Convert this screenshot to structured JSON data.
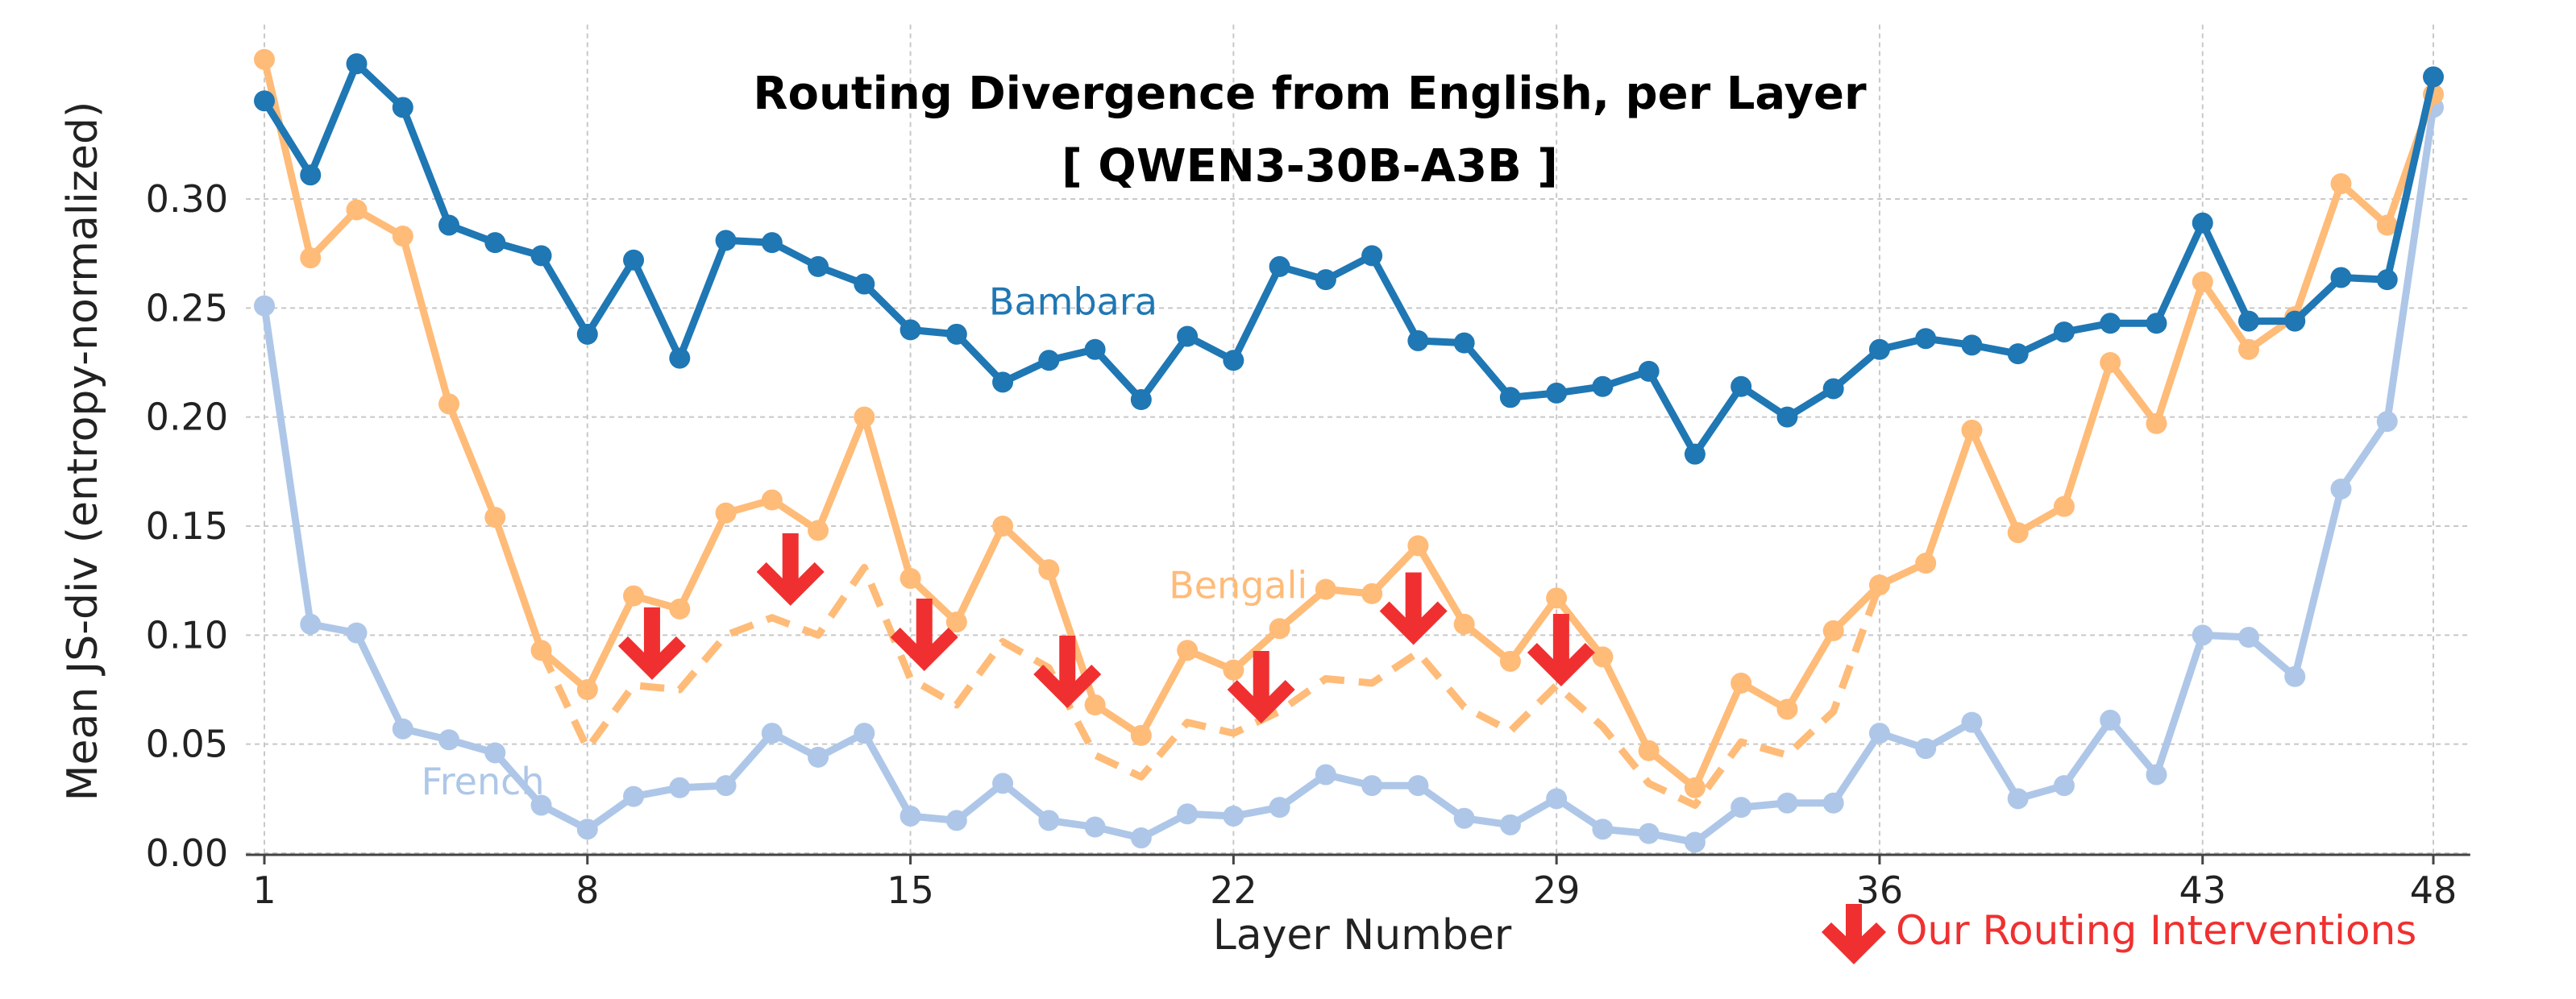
{
  "chart_data": {
    "type": "line",
    "title": "Routing Divergence from English, per Layer",
    "subtitle": "[ QWEN3-30B-A3B ]",
    "xlabel": "Layer Number",
    "ylabel": "Mean JS-div (entropy-normalized)",
    "xlim": [
      0.6,
      48.8
    ],
    "ylim": [
      0,
      0.38
    ],
    "xticks": [
      1,
      8,
      15,
      22,
      29,
      36,
      43,
      48
    ],
    "yticks": [
      0.0,
      0.05,
      0.1,
      0.15,
      0.2,
      0.25,
      0.3
    ],
    "ytick_labels": [
      "0.00",
      "0.05",
      "0.10",
      "0.15",
      "0.20",
      "0.25",
      "0.30"
    ],
    "grid": true,
    "x": [
      1,
      2,
      3,
      4,
      5,
      6,
      7,
      8,
      9,
      10,
      11,
      12,
      13,
      14,
      15,
      16,
      17,
      18,
      19,
      20,
      21,
      22,
      23,
      24,
      25,
      26,
      27,
      28,
      29,
      30,
      31,
      32,
      33,
      34,
      35,
      36,
      37,
      38,
      39,
      40,
      41,
      42,
      43,
      44,
      45,
      46,
      47,
      48
    ],
    "series": [
      {
        "name": "Bambara",
        "color": "#1f77b4",
        "style": "solid",
        "values": [
          0.345,
          0.311,
          0.362,
          0.342,
          0.288,
          0.28,
          0.274,
          0.238,
          0.272,
          0.227,
          0.281,
          0.28,
          0.269,
          0.261,
          0.24,
          0.238,
          0.216,
          0.226,
          0.231,
          0.208,
          0.237,
          0.226,
          0.269,
          0.263,
          0.274,
          0.235,
          0.234,
          0.209,
          0.211,
          0.214,
          0.221,
          0.183,
          0.214,
          0.2,
          0.213,
          0.231,
          0.236,
          0.233,
          0.229,
          0.239,
          0.243,
          0.243,
          0.289,
          0.244,
          0.244,
          0.264,
          0.263,
          0.356
        ]
      },
      {
        "name": "Bengali",
        "color": "#ffbb78",
        "style": "solid",
        "values": [
          0.364,
          0.273,
          0.295,
          0.283,
          0.206,
          0.154,
          0.093,
          0.075,
          0.118,
          0.112,
          0.156,
          0.162,
          0.148,
          0.2,
          0.126,
          0.106,
          0.15,
          0.13,
          0.068,
          0.054,
          0.093,
          0.084,
          0.103,
          0.121,
          0.119,
          0.141,
          0.105,
          0.088,
          0.117,
          0.09,
          0.047,
          0.03,
          0.078,
          0.066,
          0.102,
          0.123,
          0.133,
          0.194,
          0.147,
          0.159,
          0.225,
          0.197,
          0.262,
          0.231,
          0.246,
          0.307,
          0.288,
          0.348
        ]
      },
      {
        "name": "Bengali (with routing interventions)",
        "color": "#ffbb78",
        "style": "dashed",
        "x": [
          7,
          8,
          9,
          10,
          11,
          12,
          13,
          14,
          15,
          16,
          17,
          18,
          19,
          20,
          21,
          22,
          23,
          24,
          25,
          26,
          27,
          28,
          29,
          30,
          31,
          32,
          33,
          34,
          35,
          36
        ],
        "values": [
          0.093,
          0.048,
          0.077,
          0.075,
          0.1,
          0.108,
          0.1,
          0.131,
          0.08,
          0.068,
          0.097,
          0.085,
          0.045,
          0.035,
          0.06,
          0.055,
          0.065,
          0.08,
          0.078,
          0.092,
          0.067,
          0.056,
          0.077,
          0.058,
          0.032,
          0.022,
          0.051,
          0.045,
          0.065,
          0.123
        ]
      },
      {
        "name": "French",
        "color": "#aec7e8",
        "style": "solid",
        "values": [
          0.251,
          0.105,
          0.101,
          0.057,
          0.052,
          0.046,
          0.022,
          0.011,
          0.026,
          0.03,
          0.031,
          0.055,
          0.044,
          0.055,
          0.017,
          0.015,
          0.032,
          0.015,
          0.012,
          0.007,
          0.018,
          0.017,
          0.021,
          0.036,
          0.031,
          0.031,
          0.016,
          0.013,
          0.025,
          0.011,
          0.009,
          0.005,
          0.021,
          0.023,
          0.023,
          0.055,
          0.048,
          0.06,
          0.025,
          0.031,
          0.061,
          0.036,
          0.1,
          0.099,
          0.081,
          0.167,
          0.198,
          0.342
        ]
      }
    ],
    "annotations": {
      "intervention_color": "#f03030",
      "intervention_arrows": [
        {
          "x": 9.4,
          "y": 0.095
        },
        {
          "x": 12.4,
          "y": 0.129
        },
        {
          "x": 15.3,
          "y": 0.099
        },
        {
          "x": 18.4,
          "y": 0.082
        },
        {
          "x": 22.6,
          "y": 0.075
        },
        {
          "x": 25.9,
          "y": 0.111
        },
        {
          "x": 29.1,
          "y": 0.092
        }
      ],
      "legend_label": "Our Routing Interventions"
    }
  }
}
